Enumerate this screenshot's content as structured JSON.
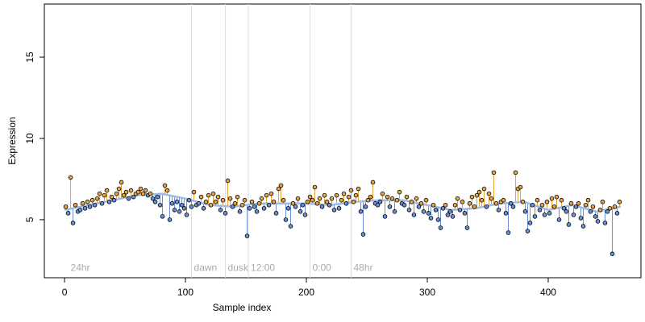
{
  "chart_data": {
    "type": "scatter",
    "xlabel": "Sample index",
    "ylabel": "Expression",
    "xlim": [
      -16.7,
      476.7
    ],
    "ylim": [
      1.43,
      18.27
    ],
    "xticks": [
      0,
      100,
      200,
      300,
      400
    ],
    "yticks": [
      5,
      10,
      15
    ],
    "vlines": [
      105,
      133,
      152,
      203,
      237
    ],
    "annotations": [
      {
        "text": "24hr",
        "x": 3,
        "y": 2
      },
      {
        "text": "dawn",
        "x": 105,
        "y": 2
      },
      {
        "text": "dusk",
        "x": 133,
        "y": 2
      },
      {
        "text": "12:00",
        "x": 152,
        "y": 2
      },
      {
        "text": "0:00",
        "x": 203,
        "y": 2
      },
      {
        "text": "48hr",
        "x": 237,
        "y": 2
      }
    ],
    "above_color": "#e8a33a",
    "below_color": "#6a8fd8",
    "fit_color": "#9dbbe6",
    "fit": {
      "x": [
        0,
        20,
        40,
        60,
        80,
        100,
        120,
        140,
        160,
        180,
        200,
        220,
        240,
        260,
        280,
        300,
        320,
        340,
        360,
        380,
        400,
        420,
        440,
        460
      ],
      "values": [
        5.6,
        5.9,
        6.2,
        6.5,
        6.6,
        6.3,
        5.9,
        5.8,
        6.0,
        6.0,
        6.0,
        5.9,
        6.1,
        6.2,
        6.2,
        5.9,
        5.6,
        5.7,
        6.0,
        6.1,
        5.6,
        5.9,
        5.5,
        5.8
      ]
    },
    "points": {
      "x": [
        1,
        3,
        5,
        7,
        9,
        11,
        13,
        15,
        17,
        19,
        21,
        23,
        25,
        27,
        29,
        31,
        33,
        35,
        37,
        39,
        41,
        43,
        45,
        47,
        49,
        51,
        53,
        55,
        57,
        59,
        61,
        63,
        65,
        67,
        69,
        71,
        73,
        75,
        77,
        79,
        81,
        83,
        85,
        87,
        89,
        91,
        93,
        95,
        97,
        99,
        101,
        103,
        105,
        107,
        109,
        111,
        113,
        115,
        117,
        119,
        121,
        123,
        125,
        127,
        129,
        131,
        133,
        135,
        137,
        139,
        141,
        143,
        145,
        147,
        149,
        151,
        153,
        155,
        157,
        159,
        161,
        163,
        165,
        167,
        169,
        171,
        173,
        175,
        177,
        179,
        181,
        183,
        185,
        187,
        189,
        191,
        193,
        195,
        197,
        199,
        201,
        203,
        205,
        207,
        209,
        211,
        213,
        215,
        217,
        219,
        221,
        223,
        225,
        227,
        229,
        231,
        233,
        235,
        237,
        239,
        241,
        243,
        245,
        247,
        249,
        251,
        253,
        255,
        257,
        259,
        261,
        263,
        265,
        267,
        269,
        271,
        273,
        275,
        277,
        279,
        281,
        283,
        285,
        287,
        289,
        291,
        293,
        295,
        297,
        299,
        301,
        303,
        305,
        307,
        309,
        311,
        313,
        315,
        317,
        319,
        321,
        323,
        325,
        327,
        329,
        331,
        333,
        335,
        337,
        339,
        341,
        343,
        345,
        347,
        349,
        351,
        353,
        355,
        357,
        359,
        361,
        363,
        365,
        367,
        369,
        371,
        373,
        375,
        377,
        379,
        381,
        383,
        385,
        387,
        389,
        391,
        393,
        395,
        397,
        399,
        401,
        403,
        405,
        407,
        409,
        411,
        413,
        415,
        417,
        419,
        421,
        423,
        425,
        427,
        429,
        431,
        433,
        435,
        437,
        439,
        441,
        443,
        445,
        447,
        449,
        451,
        453,
        455,
        457,
        459
      ],
      "values": [
        5.8,
        5.4,
        7.6,
        4.8,
        5.9,
        5.5,
        5.6,
        6.0,
        5.7,
        6.1,
        5.8,
        6.2,
        5.9,
        6.3,
        6.6,
        6.0,
        6.5,
        6.8,
        6.1,
        6.4,
        6.2,
        6.6,
        6.9,
        7.3,
        6.5,
        6.7,
        6.3,
        6.8,
        6.4,
        6.6,
        6.7,
        6.9,
        6.6,
        6.8,
        6.5,
        6.6,
        6.3,
        6.1,
        6.4,
        5.9,
        5.2,
        7.1,
        6.8,
        5.0,
        6.0,
        5.6,
        6.1,
        5.5,
        5.9,
        5.7,
        5.3,
        6.2,
        5.8,
        6.7,
        5.9,
        6.0,
        6.4,
        5.7,
        6.1,
        6.5,
        5.9,
        6.6,
        6.1,
        6.4,
        5.6,
        6.2,
        5.4,
        7.4,
        6.3,
        5.8,
        6.0,
        6.4,
        5.5,
        5.9,
        6.2,
        4.0,
        5.7,
        6.1,
        5.8,
        5.5,
        6.0,
        6.3,
        5.7,
        6.5,
        5.9,
        6.6,
        6.1,
        5.4,
        6.9,
        7.1,
        6.2,
        5.0,
        5.7,
        4.6,
        6.0,
        5.8,
        6.3,
        5.5,
        5.9,
        5.3,
        6.1,
        6.4,
        6.2,
        7.0,
        6.0,
        6.3,
        5.8,
        6.5,
        6.1,
        5.9,
        6.3,
        5.6,
        6.5,
        5.7,
        6.2,
        6.6,
        6.0,
        6.4,
        6.8,
        6.1,
        6.5,
        6.9,
        5.5,
        4.1,
        5.8,
        6.2,
        6.4,
        7.3,
        6.0,
        5.9,
        6.1,
        6.6,
        5.2,
        6.4,
        5.8,
        6.3,
        5.5,
        6.2,
        6.7,
        6.0,
        5.9,
        6.4,
        5.6,
        6.1,
        5.3,
        6.3,
        5.8,
        6.0,
        5.5,
        6.2,
        5.4,
        5.1,
        5.9,
        5.6,
        5.0,
        4.5,
        5.7,
        5.9,
        5.3,
        5.5,
        5.2,
        5.9,
        6.3,
        5.6,
        6.1,
        5.4,
        4.5,
        6.0,
        6.4,
        5.8,
        6.5,
        6.7,
        6.2,
        6.9,
        5.8,
        6.6,
        6.3,
        7.9,
        6.0,
        5.6,
        6.1,
        6.2,
        5.4,
        4.2,
        6.0,
        5.8,
        7.9,
        6.9,
        7.0,
        6.1,
        5.5,
        4.3,
        4.8,
        5.9,
        5.2,
        6.2,
        5.6,
        5.9,
        5.3,
        6.1,
        5.4,
        6.3,
        5.8,
        6.4,
        5.0,
        6.2,
        5.7,
        5.5,
        4.7,
        6.0,
        5.3,
        5.8,
        6.0,
        5.1,
        4.6,
        5.9,
        6.2,
        5.5,
        5.8,
        5.2,
        4.9,
        5.6,
        6.1,
        4.8,
        5.5,
        5.7,
        2.9,
        5.8,
        5.4,
        6.1
      ]
    }
  }
}
